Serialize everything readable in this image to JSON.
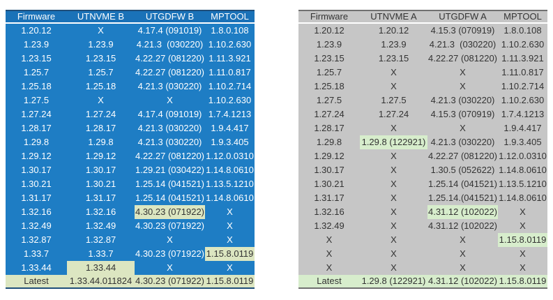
{
  "colors": {
    "left_fill": "#1e7dc4",
    "left_header_fill": "#1a72b8",
    "left_text": "#ffffff",
    "left_border": "#1f4e79",
    "right_fill": "#c6c6c6",
    "right_text": "#333333",
    "right_border": "#707070",
    "highlight_left": "#dce6c1",
    "highlight_right": "#d7edcc",
    "highlight_text": "#333333"
  },
  "left_table": {
    "headers": [
      "Firmware",
      "UTNVME B",
      "UTGDFW B",
      "MPTOOL"
    ],
    "rows": [
      [
        "1.20.12",
        "X",
        "4.17.4 (091019)",
        "1.8.0.108"
      ],
      [
        "1.23.9",
        "1.23.9",
        "4.21.3  (030220)",
        "1.10.2.630"
      ],
      [
        "1.23.15",
        "1.23.15",
        "4.22.27 (081220)",
        "1.11.3.921"
      ],
      [
        "1.25.7",
        "1.25.7",
        "4.22.27 (081220)",
        "1.11.0.817"
      ],
      [
        "1.25.18",
        "1.25.18",
        "4.21.3 (030220)",
        "1.10.2.714"
      ],
      [
        "1.27.5",
        "X",
        "X",
        "1.10.2.630"
      ],
      [
        "1.27.24",
        "1.27.24",
        "4.17.4 (091019)",
        "1.7.4.1213"
      ],
      [
        "1.28.17",
        "1.28.17",
        "4.21.3 (030220)",
        "1.9.4.417"
      ],
      [
        "1.29.8",
        "1.29.8",
        "4.21.3 (030220)",
        "1.9.3.405"
      ],
      [
        "1.29.12",
        "1.29.12",
        "4.22.27 (081220)",
        "1.12.0.0310"
      ],
      [
        "1.30.17",
        "1.30.17",
        "1.29.21 (030422)",
        "1.14.8.0610"
      ],
      [
        "1.30.21",
        "1.30.21",
        "1.25.14 (041521)",
        "1.13.5.1210"
      ],
      [
        "1.31.17",
        "1.31.17",
        "1.25.14 (041521)",
        "1.14.8.0610"
      ],
      [
        "1.32.16",
        "1.32.16",
        "4.30.23 (071922)",
        "X"
      ],
      [
        "1.32.49",
        "1.32.49",
        "4.30.23 (071922)",
        "X"
      ],
      [
        "1.32.87",
        "1.32.87",
        "X",
        "X"
      ],
      [
        "1.33.7",
        "1.33.7",
        "4.30.23 (071922)",
        "1.15.8.0119"
      ],
      [
        "1.33.44",
        "1.33.44",
        "X",
        "X"
      ]
    ],
    "highlighted_cells": [
      [
        13,
        2
      ],
      [
        16,
        3
      ],
      [
        17,
        1
      ]
    ],
    "latest": [
      "Latest",
      "1.33.44.011824",
      "4.30.23 (071922)",
      "1.15.8.0119"
    ]
  },
  "right_table": {
    "headers": [
      "Firmware",
      "UTNVME A",
      "UTGDFW A",
      "MPTOOL"
    ],
    "rows": [
      [
        "1.20.12",
        "1.20.12",
        "4.15.3 (070919)",
        "1.8.0.108"
      ],
      [
        "1.23.9",
        "1.23.9",
        "4.21.3  (030220)",
        "1.10.2.630"
      ],
      [
        "1.23.15",
        "1.23.15",
        "4.22.27 (081220)",
        "1.11.3.921"
      ],
      [
        "1.25.7",
        "X",
        "X",
        "1.11.0.817"
      ],
      [
        "1.25.18",
        "X",
        "X",
        "1.10.2.714"
      ],
      [
        "1.27.5",
        "1.27.5",
        "4.21.3 (030220)",
        "1.10.2.630"
      ],
      [
        "1.27.24",
        "1.27.24",
        "4.15.3 (070919)",
        "1.7.4.1213"
      ],
      [
        "1.28.17",
        "X",
        "X",
        "1.9.4.417"
      ],
      [
        "1.29.8",
        "1.29.8 (122921)",
        "4.21.3 (030220)",
        "1.9.3.405"
      ],
      [
        "1.29.12",
        "X",
        "4.22.27 (081220)",
        "1.12.0.0310"
      ],
      [
        "1.30.17",
        "X",
        "1.30.5 (052622)",
        "1.14.8.0610"
      ],
      [
        "1.30.21",
        "X",
        "1.25.14 (041521)",
        "1.13.5.1210"
      ],
      [
        "1.31.17",
        "X",
        "1.25.14.(041521)",
        "1.14.8.0610"
      ],
      [
        "1.32.16",
        "X",
        "4.31.12 (102022)",
        "X"
      ],
      [
        "1.32.49",
        "X",
        "4.31.12 (102022)",
        "X"
      ],
      [
        "X",
        "X",
        "X",
        "1.15.8.0119"
      ],
      [
        "X",
        "X",
        "X",
        "X"
      ],
      [
        "X",
        "X",
        "X",
        "X"
      ]
    ],
    "highlighted_cells": [
      [
        8,
        1
      ],
      [
        13,
        2
      ],
      [
        15,
        3
      ]
    ],
    "latest": [
      "Latest",
      "1.29.8 (122921)",
      "4.31.12 (102022)",
      "1.15.8.0119"
    ]
  }
}
